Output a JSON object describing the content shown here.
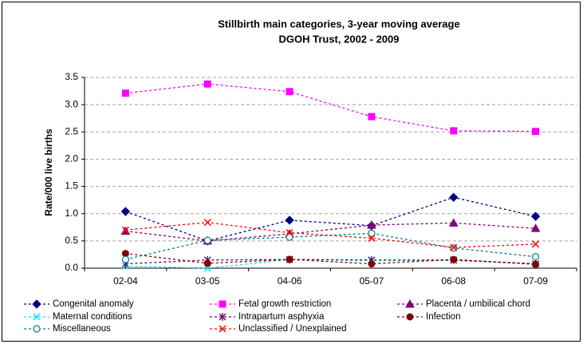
{
  "chart_data": {
    "type": "line",
    "title": "Stillbirth main categories, 3-year moving average",
    "subtitle": "DGOH Trust, 2002 - 2009",
    "y_label": "Rate/000 live births",
    "categories": [
      "02-04",
      "03-05",
      "04-06",
      "05-07",
      "06-08",
      "07-09"
    ],
    "ylim": [
      0,
      3.5
    ],
    "yticks": [
      {
        "value": 0,
        "label": "0.0"
      },
      0.5,
      {
        "value": 1,
        "label": "1.0"
      },
      1.5,
      {
        "value": 2,
        "label": "2.0"
      },
      2.5,
      {
        "value": 3,
        "label": "3.0"
      },
      3.5
    ],
    "grid": true,
    "legend": "bottom",
    "series": [
      {
        "name": "Congenital anomaly",
        "color": "#000080",
        "marker": "diamond",
        "values": [
          1.04,
          0.5,
          0.88,
          0.78,
          1.3,
          0.95
        ]
      },
      {
        "name": "Fetal growth restriction",
        "color": "#ff00ff",
        "marker": "square",
        "values": [
          3.21,
          3.38,
          3.24,
          2.78,
          2.52,
          2.51
        ]
      },
      {
        "name": "Placenta / umbilical chord",
        "color": "#800080",
        "marker": "triangle",
        "values": [
          0.68,
          0.5,
          0.63,
          0.79,
          0.83,
          0.73
        ]
      },
      {
        "name": "Maternal conditions",
        "color": "#00e5ff",
        "marker": "cross",
        "values": [
          0.04,
          0.0,
          0.16,
          0.14,
          0.14,
          0.08
        ]
      },
      {
        "name": "Intrapartum asphyxia",
        "color": "#660066",
        "marker": "star",
        "values": [
          0.08,
          0.15,
          0.16,
          0.15,
          0.15,
          0.08
        ]
      },
      {
        "name": "Infection",
        "color": "#800000",
        "marker": "circle",
        "values": [
          0.27,
          0.09,
          0.16,
          0.08,
          0.16,
          0.07
        ]
      },
      {
        "name": "Miscellaneous",
        "color": "#008080",
        "marker": "open-circle",
        "values": [
          0.16,
          0.51,
          0.57,
          0.64,
          0.37,
          0.21
        ]
      },
      {
        "name": "Unclassified / Unexplained",
        "color": "#ff0000",
        "marker": "cross",
        "values": [
          0.7,
          0.84,
          0.65,
          0.55,
          0.38,
          0.44
        ]
      }
    ]
  }
}
